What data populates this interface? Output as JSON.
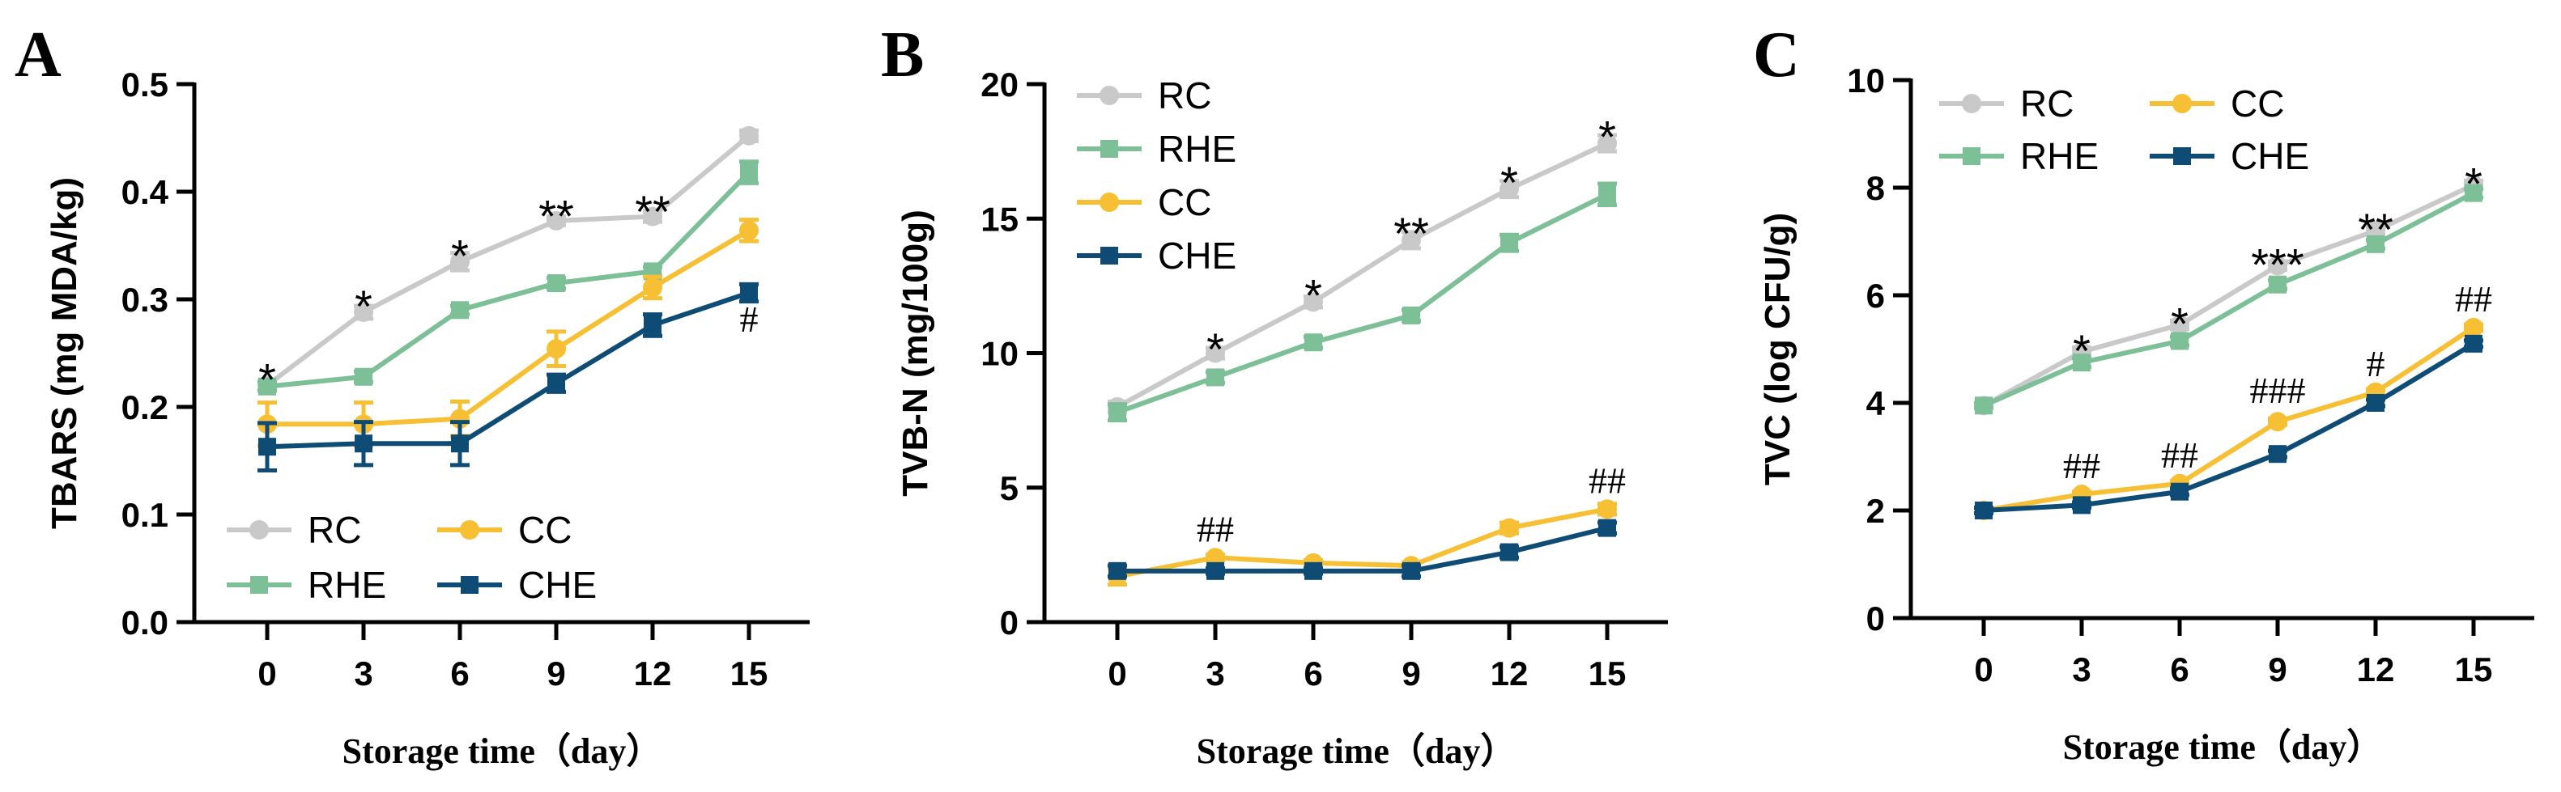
{
  "chart_data": [
    {
      "panel": "A",
      "type": "line",
      "ylabel": "TBARS (mg MDA/kg)",
      "xlabel": "Storage time（day）",
      "x": [
        0,
        3,
        6,
        9,
        12,
        15
      ],
      "xticks": [
        "0",
        "3",
        "6",
        "9",
        "12",
        "15"
      ],
      "ylim": [
        0,
        0.5
      ],
      "yticks": [
        "0.0",
        "0.1",
        "0.2",
        "0.3",
        "0.4",
        "0.5"
      ],
      "legend_placement": "bottom-left",
      "legend_columns": 2,
      "series": [
        {
          "name": "RC",
          "color": "#c9c9c9",
          "marker": "circle",
          "values": [
            0.22,
            0.288,
            0.335,
            0.373,
            0.377,
            0.452
          ],
          "errors": [
            0.004,
            0.006,
            0.008,
            0.004,
            0.005,
            0.005
          ]
        },
        {
          "name": "RHE",
          "color": "#7dbf97",
          "marker": "square",
          "values": [
            0.219,
            0.228,
            0.29,
            0.315,
            0.326,
            0.418
          ],
          "errors": [
            0.004,
            0.005,
            0.004,
            0.005,
            0.004,
            0.01
          ]
        },
        {
          "name": "CC",
          "color": "#f7c034",
          "marker": "circle",
          "values": [
            0.184,
            0.184,
            0.189,
            0.254,
            0.311,
            0.364
          ],
          "errors": [
            0.02,
            0.02,
            0.016,
            0.016,
            0.01,
            0.01
          ]
        },
        {
          "name": "CHE",
          "color": "#0f4c75",
          "marker": "square",
          "values": [
            0.163,
            0.166,
            0.166,
            0.222,
            0.276,
            0.306
          ],
          "errors": [
            0.022,
            0.02,
            0.02,
            0.008,
            0.01,
            0.008
          ]
        }
      ],
      "annotations": [
        {
          "x": 0,
          "text": "*",
          "kind": "star",
          "y": 0.232
        },
        {
          "x": 3,
          "text": "*",
          "kind": "star",
          "y": 0.3
        },
        {
          "x": 6,
          "text": "*",
          "kind": "star",
          "y": 0.347
        },
        {
          "x": 9,
          "text": "**",
          "kind": "star",
          "y": 0.384
        },
        {
          "x": 12,
          "text": "**",
          "kind": "star",
          "y": 0.388
        },
        {
          "x": 15,
          "text": "#",
          "kind": "hash",
          "y": 0.27
        }
      ]
    },
    {
      "panel": "B",
      "type": "line",
      "ylabel": "TVB-N (mg/100g)",
      "xlabel": "Storage time（day）",
      "x": [
        0,
        3,
        6,
        9,
        12,
        15
      ],
      "xticks": [
        "0",
        "3",
        "6",
        "9",
        "12",
        "15"
      ],
      "ylim": [
        0,
        20
      ],
      "yticks": [
        "0",
        "5",
        "10",
        "15",
        "20"
      ],
      "legend_placement": "top-left",
      "legend_columns": 1,
      "series": [
        {
          "name": "RC",
          "color": "#c9c9c9",
          "marker": "circle",
          "values": [
            8.0,
            10.0,
            11.9,
            14.2,
            16.1,
            17.8
          ],
          "errors": [
            0.2,
            0.2,
            0.2,
            0.3,
            0.3,
            0.3
          ]
        },
        {
          "name": "RHE",
          "color": "#7dbf97",
          "marker": "square",
          "values": [
            7.8,
            9.1,
            10.4,
            11.4,
            14.1,
            15.9
          ],
          "errors": [
            0.3,
            0.2,
            0.2,
            0.2,
            0.3,
            0.4
          ]
        },
        {
          "name": "CC",
          "color": "#f7c034",
          "marker": "circle",
          "values": [
            1.7,
            2.4,
            2.2,
            2.1,
            3.5,
            4.2
          ],
          "errors": [
            0.3,
            0.1,
            0.1,
            0.1,
            0.2,
            0.2
          ]
        },
        {
          "name": "CHE",
          "color": "#0f4c75",
          "marker": "square",
          "values": [
            1.9,
            1.9,
            1.9,
            1.9,
            2.6,
            3.5
          ],
          "errors": [
            0.2,
            0.1,
            0.1,
            0.2,
            0.2,
            0.2
          ]
        }
      ],
      "annotations": [
        {
          "x": 3,
          "text": "*",
          "kind": "star",
          "y": 10.4
        },
        {
          "x": 6,
          "text": "*",
          "kind": "star",
          "y": 12.4
        },
        {
          "x": 9,
          "text": "**",
          "kind": "star",
          "y": 14.7
        },
        {
          "x": 12,
          "text": "*",
          "kind": "star",
          "y": 16.6
        },
        {
          "x": 15,
          "text": "*",
          "kind": "star",
          "y": 18.3
        },
        {
          "x": 3,
          "text": "##",
          "kind": "hash",
          "y": 3.0
        },
        {
          "x": 15,
          "text": "##",
          "kind": "hash",
          "y": 4.8
        }
      ]
    },
    {
      "panel": "C",
      "type": "line",
      "ylabel": "TVC (log CFU/g)",
      "xlabel": "Storage time（day）",
      "x": [
        0,
        3,
        6,
        9,
        12,
        15
      ],
      "xticks": [
        "0",
        "3",
        "6",
        "9",
        "12",
        "15"
      ],
      "ylim": [
        0,
        10
      ],
      "yticks": [
        "0",
        "2",
        "4",
        "6",
        "8",
        "10"
      ],
      "legend_placement": "top-left",
      "legend_columns": 2,
      "series": [
        {
          "name": "RC",
          "color": "#c9c9c9",
          "marker": "circle",
          "values": [
            3.95,
            4.95,
            5.45,
            6.55,
            7.2,
            8.05
          ],
          "errors": [
            0.05,
            0.08,
            0.08,
            0.08,
            0.08,
            0.08
          ]
        },
        {
          "name": "RHE",
          "color": "#7dbf97",
          "marker": "square",
          "values": [
            3.95,
            4.75,
            5.15,
            6.2,
            6.95,
            7.9
          ],
          "errors": [
            0.05,
            0.08,
            0.08,
            0.08,
            0.08,
            0.08
          ]
        },
        {
          "name": "CC",
          "color": "#f7c034",
          "marker": "circle",
          "values": [
            2.0,
            2.3,
            2.5,
            3.65,
            4.2,
            5.4
          ],
          "errors": [
            0.05,
            0.05,
            0.05,
            0.06,
            0.06,
            0.06
          ]
        },
        {
          "name": "CHE",
          "color": "#0f4c75",
          "marker": "square",
          "values": [
            2.0,
            2.1,
            2.35,
            3.05,
            4.0,
            5.1
          ],
          "errors": [
            0.05,
            0.05,
            0.06,
            0.06,
            0.06,
            0.06
          ]
        }
      ],
      "annotations": [
        {
          "x": 3,
          "text": "*",
          "kind": "star",
          "y": 5.1
        },
        {
          "x": 6,
          "text": "*",
          "kind": "star",
          "y": 5.6
        },
        {
          "x": 9,
          "text": "***",
          "kind": "star",
          "y": 6.7
        },
        {
          "x": 12,
          "text": "**",
          "kind": "star",
          "y": 7.35
        },
        {
          "x": 15,
          "text": "*",
          "kind": "star",
          "y": 8.2
        },
        {
          "x": 3,
          "text": "##",
          "kind": "hash",
          "y": 2.6
        },
        {
          "x": 6,
          "text": "##",
          "kind": "hash",
          "y": 2.8
        },
        {
          "x": 9,
          "text": "###",
          "kind": "hash",
          "y": 4.0
        },
        {
          "x": 12,
          "text": "#",
          "kind": "hash",
          "y": 4.5
        },
        {
          "x": 15,
          "text": "##",
          "kind": "hash",
          "y": 5.7
        }
      ]
    }
  ]
}
